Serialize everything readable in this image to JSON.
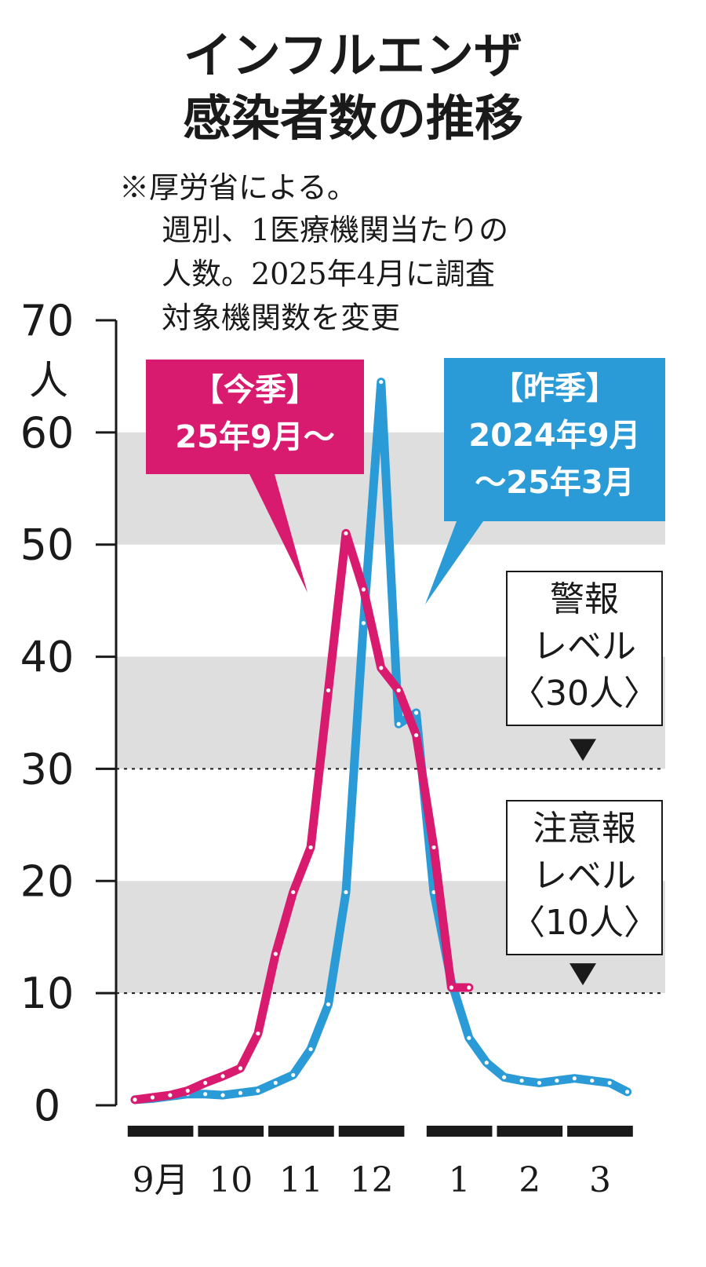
{
  "chart_data": {
    "type": "line",
    "title": [
      "インフルエンザ",
      "感染者数の推移"
    ],
    "note": [
      "※厚労省による。",
      "週別、1医療機関当たりの",
      "人数。2025年4月に調査",
      "対象機関数を変更"
    ],
    "yunit": "人",
    "ylim": [
      0,
      70
    ],
    "yticks": [
      "0",
      "10",
      "20",
      "30",
      "40",
      "50",
      "60",
      "70"
    ],
    "month_labels": [
      "9月",
      "10",
      "11",
      "12",
      "1",
      "2",
      "3"
    ],
    "month_weeks": [
      [
        0,
        4
      ],
      [
        4,
        8
      ],
      [
        8,
        12
      ],
      [
        12,
        16
      ],
      [
        17,
        21
      ],
      [
        21,
        25
      ],
      [
        25,
        29
      ]
    ],
    "week_count": 30,
    "bands": [
      [
        10,
        20
      ],
      [
        30,
        40
      ],
      [
        50,
        60
      ]
    ],
    "series": [
      {
        "name": "【今季】 25年9月～",
        "label_lines": [
          "【今季】",
          "25年9月～"
        ],
        "color": "#d81b6f",
        "values": [
          0.5,
          0.7,
          0.9,
          1.3,
          2.0,
          2.6,
          3.3,
          6.4,
          13.5,
          19.0,
          23.0,
          37.0,
          51.0,
          46.0,
          39.0,
          37.0,
          33.0,
          23.0,
          10.5,
          10.5
        ]
      },
      {
        "name": "【昨季】 2024年9月 ～25年3月",
        "label_lines": [
          "【昨季】",
          "2024年9月",
          "～25年3月"
        ],
        "color": "#2a9bd6",
        "values": [
          0.5,
          0.6,
          0.8,
          1.0,
          1.0,
          0.9,
          1.1,
          1.3,
          2.0,
          2.7,
          5.0,
          9.0,
          19.0,
          43.0,
          64.5,
          34.0,
          35.0,
          19.0,
          11.0,
          6.0,
          3.8,
          2.5,
          2.2,
          2.0,
          2.2,
          2.4,
          2.2,
          2.0,
          1.2
        ]
      }
    ],
    "levels": [
      {
        "value": 30,
        "label_lines": [
          "警報",
          "レベル",
          "〈30人〉"
        ]
      },
      {
        "value": 10,
        "label_lines": [
          "注意報",
          "レベル",
          "〈10人〉"
        ]
      }
    ]
  }
}
